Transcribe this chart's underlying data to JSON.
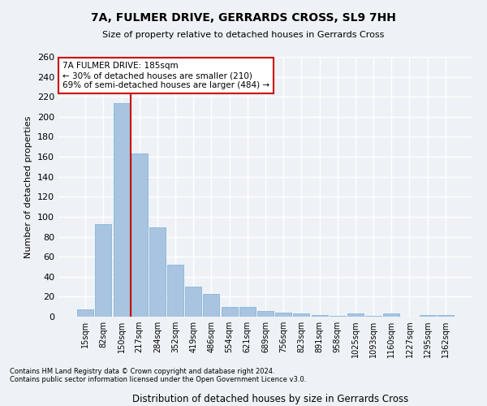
{
  "title": "7A, FULMER DRIVE, GERRARDS CROSS, SL9 7HH",
  "subtitle": "Size of property relative to detached houses in Gerrards Cross",
  "xlabel": "Distribution of detached houses by size in Gerrards Cross",
  "ylabel": "Number of detached properties",
  "bar_color": "#a8c4e0",
  "bar_edge_color": "#7aafd4",
  "vline_color": "#cc0000",
  "vline_x_idx": 2.5,
  "categories": [
    "15sqm",
    "82sqm",
    "150sqm",
    "217sqm",
    "284sqm",
    "352sqm",
    "419sqm",
    "486sqm",
    "554sqm",
    "621sqm",
    "689sqm",
    "756sqm",
    "823sqm",
    "891sqm",
    "958sqm",
    "1025sqm",
    "1093sqm",
    "1160sqm",
    "1227sqm",
    "1295sqm",
    "1362sqm"
  ],
  "values": [
    7,
    93,
    214,
    163,
    89,
    52,
    30,
    23,
    10,
    10,
    6,
    4,
    3,
    2,
    1,
    3,
    1,
    3,
    0,
    2,
    2
  ],
  "ylim": [
    0,
    260
  ],
  "yticks": [
    0,
    20,
    40,
    60,
    80,
    100,
    120,
    140,
    160,
    180,
    200,
    220,
    240,
    260
  ],
  "annotation_title": "7A FULMER DRIVE: 185sqm",
  "annotation_line1": "← 30% of detached houses are smaller (210)",
  "annotation_line2": "69% of semi-detached houses are larger (484) →",
  "annotation_box_color": "#ffffff",
  "annotation_box_edge": "#cc0000",
  "footnote1": "Contains HM Land Registry data © Crown copyright and database right 2024.",
  "footnote2": "Contains public sector information licensed under the Open Government Licence v3.0.",
  "bg_color": "#eef2f7",
  "grid_color": "#ffffff"
}
